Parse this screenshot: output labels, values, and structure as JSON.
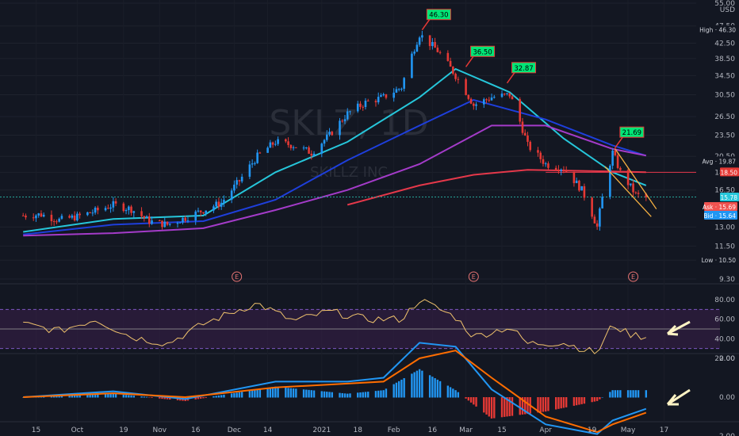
{
  "chart_data": {
    "type": "candlestick",
    "watermark": {
      "symbol": "SKLZ, 1D",
      "name": "SKILLZ INC"
    },
    "price_axis": {
      "unit_label": "USD",
      "scale": "log",
      "ticks": [
        "55.00",
        "47.50",
        "42.50",
        "38.50",
        "34.50",
        "30.50",
        "26.50",
        "23.50",
        "20.50",
        "18.50",
        "16.50",
        "13.00",
        "11.50",
        "10.50",
        "9.30"
      ]
    },
    "x_axis": {
      "ticks": [
        "15",
        "Oct",
        "19",
        "Nov",
        "16",
        "Dec",
        "14",
        "2021",
        "18",
        "Feb",
        "16",
        "Mar",
        "15",
        "Apr",
        "19",
        "May",
        "17"
      ]
    },
    "price_labels": [
      {
        "name": "High",
        "value": "46.30",
        "color": "#ffffff"
      },
      {
        "name": "Avg",
        "value": "19.87",
        "color": "#ffffff"
      },
      {
        "name": "",
        "value": "18.50",
        "color": "#e53935"
      },
      {
        "name": "",
        "value": "15.78",
        "color": "#26c6da"
      },
      {
        "name": "Ask",
        "value": "15.69",
        "color": "#ef5350"
      },
      {
        "name": "Bid",
        "value": "15.64",
        "color": "#2196f3"
      },
      {
        "name": "Low",
        "value": "10.50",
        "color": "#ffffff"
      }
    ],
    "peak_labels": [
      {
        "text": "46.30",
        "x": "2021-02-12",
        "y": 46.3
      },
      {
        "text": "36.50",
        "x": "2021-03-01",
        "y": 36.5
      },
      {
        "text": "32.87",
        "x": "2021-03-17",
        "y": 32.87
      },
      {
        "text": "21.69",
        "x": "2021-04-28",
        "y": 21.69
      }
    ],
    "earnings_markers": [
      {
        "label": "E",
        "x": "2020-12-02"
      },
      {
        "label": "E",
        "x": "2021-03-04"
      },
      {
        "label": "E",
        "x": "2021-05-05"
      }
    ],
    "close_series": [
      [
        "2020-09-10",
        14.0
      ],
      [
        "2020-09-17",
        14.1
      ],
      [
        "2020-09-24",
        13.6
      ],
      [
        "2020-10-01",
        13.9
      ],
      [
        "2020-10-08",
        14.4
      ],
      [
        "2020-10-15",
        15.0
      ],
      [
        "2020-10-22",
        14.6
      ],
      [
        "2020-10-29",
        13.5
      ],
      [
        "2020-11-05",
        13.2
      ],
      [
        "2020-11-12",
        13.8
      ],
      [
        "2020-11-19",
        14.5
      ],
      [
        "2020-11-26",
        15.2
      ],
      [
        "2020-12-03",
        17.5
      ],
      [
        "2020-12-10",
        20.5
      ],
      [
        "2020-12-17",
        22.5
      ],
      [
        "2020-12-24",
        22.0
      ],
      [
        "2020-12-31",
        21.0
      ],
      [
        "2021-01-07",
        23.5
      ],
      [
        "2021-01-14",
        27.0
      ],
      [
        "2021-01-21",
        29.0
      ],
      [
        "2021-01-28",
        30.0
      ],
      [
        "2021-02-04",
        32.0
      ],
      [
        "2021-02-11",
        45.0
      ],
      [
        "2021-02-18",
        40.5
      ],
      [
        "2021-02-25",
        34.5
      ],
      [
        "2021-03-04",
        28.5
      ],
      [
        "2021-03-11",
        30.0
      ],
      [
        "2021-03-18",
        30.5
      ],
      [
        "2021-03-25",
        22.0
      ],
      [
        "2021-04-01",
        19.5
      ],
      [
        "2021-04-08",
        19.0
      ],
      [
        "2021-04-15",
        16.5
      ],
      [
        "2021-04-21",
        13.0
      ],
      [
        "2021-04-27",
        21.0
      ],
      [
        "2021-04-30",
        18.5
      ],
      [
        "2021-05-06",
        16.0
      ],
      [
        "2021-05-10",
        15.7
      ]
    ],
    "moving_averages": [
      {
        "color": "#26c6da",
        "values": [
          [
            "2020-09-10",
            12.6
          ],
          [
            "2020-10-15",
            13.7
          ],
          [
            "2020-11-19",
            14.0
          ],
          [
            "2020-12-17",
            18.5
          ],
          [
            "2021-01-14",
            22.5
          ],
          [
            "2021-02-11",
            30.0
          ],
          [
            "2021-02-25",
            36.0
          ],
          [
            "2021-03-18",
            31.0
          ],
          [
            "2021-04-08",
            23.0
          ],
          [
            "2021-04-27",
            18.5
          ],
          [
            "2021-05-10",
            17.0
          ]
        ]
      },
      {
        "color": "#1e3fdc",
        "values": [
          [
            "2020-09-10",
            12.4
          ],
          [
            "2020-10-15",
            13.2
          ],
          [
            "2020-11-19",
            13.5
          ],
          [
            "2020-12-17",
            15.5
          ],
          [
            "2021-01-14",
            20.0
          ],
          [
            "2021-02-11",
            25.0
          ],
          [
            "2021-03-04",
            29.5
          ],
          [
            "2021-04-01",
            26.0
          ],
          [
            "2021-04-27",
            22.0
          ],
          [
            "2021-05-10",
            20.6
          ]
        ]
      },
      {
        "color": "#a43bc9",
        "values": [
          [
            "2020-09-10",
            12.3
          ],
          [
            "2020-10-15",
            12.5
          ],
          [
            "2020-11-19",
            12.9
          ],
          [
            "2020-12-17",
            14.5
          ],
          [
            "2021-01-14",
            16.5
          ],
          [
            "2021-02-11",
            19.5
          ],
          [
            "2021-03-11",
            25.0
          ],
          [
            "2021-04-01",
            25.0
          ],
          [
            "2021-04-27",
            21.5
          ],
          [
            "2021-05-10",
            20.6
          ]
        ]
      },
      {
        "color": "#e5384a",
        "values": [
          [
            "2021-01-14",
            15.0
          ],
          [
            "2021-02-11",
            17.0
          ],
          [
            "2021-03-04",
            18.2
          ],
          [
            "2021-03-25",
            18.8
          ],
          [
            "2021-04-27",
            18.6
          ],
          [
            "2021-05-10",
            18.5
          ]
        ]
      }
    ],
    "rsi": {
      "ticks": [
        "80.00",
        "60.00",
        "40.00",
        "20.00"
      ],
      "band": [
        30,
        70
      ],
      "midline": 50,
      "values": [
        [
          "2020-09-10",
          55
        ],
        [
          "2020-09-24",
          48
        ],
        [
          "2020-10-08",
          60
        ],
        [
          "2020-10-22",
          42
        ],
        [
          "2020-11-05",
          35
        ],
        [
          "2020-11-19",
          55
        ],
        [
          "2020-12-03",
          70
        ],
        [
          "2020-12-10",
          76
        ],
        [
          "2020-12-24",
          58
        ],
        [
          "2021-01-07",
          68
        ],
        [
          "2021-01-21",
          60
        ],
        [
          "2021-02-04",
          60
        ],
        [
          "2021-02-11",
          80
        ],
        [
          "2021-02-25",
          62
        ],
        [
          "2021-03-04",
          42
        ],
        [
          "2021-03-18",
          52
        ],
        [
          "2021-03-25",
          35
        ],
        [
          "2021-04-08",
          36
        ],
        [
          "2021-04-21",
          25
        ],
        [
          "2021-04-27",
          55
        ],
        [
          "2021-05-03",
          45
        ],
        [
          "2021-05-10",
          42
        ]
      ]
    },
    "macd": {
      "ticks": [
        "2.00",
        "0.00",
        "-2.00"
      ],
      "macd": [
        [
          "2020-09-10",
          0.0
        ],
        [
          "2020-10-15",
          0.3
        ],
        [
          "2020-11-12",
          -0.1
        ],
        [
          "2020-12-17",
          0.8
        ],
        [
          "2021-01-14",
          0.8
        ],
        [
          "2021-01-28",
          1.0
        ],
        [
          "2021-02-11",
          2.8
        ],
        [
          "2021-02-25",
          2.6
        ],
        [
          "2021-03-11",
          0.4
        ],
        [
          "2021-04-01",
          -1.4
        ],
        [
          "2021-04-21",
          -1.9
        ],
        [
          "2021-04-27",
          -1.2
        ],
        [
          "2021-05-10",
          -0.6
        ]
      ],
      "signal": [
        [
          "2020-09-10",
          0.0
        ],
        [
          "2020-10-15",
          0.2
        ],
        [
          "2020-11-12",
          0.0
        ],
        [
          "2020-12-17",
          0.5
        ],
        [
          "2021-01-14",
          0.7
        ],
        [
          "2021-01-28",
          0.8
        ],
        [
          "2021-02-11",
          2.0
        ],
        [
          "2021-02-25",
          2.4
        ],
        [
          "2021-03-11",
          1.0
        ],
        [
          "2021-04-01",
          -1.0
        ],
        [
          "2021-04-21",
          -1.8
        ],
        [
          "2021-04-27",
          -1.4
        ],
        [
          "2021-05-10",
          -0.8
        ]
      ]
    }
  }
}
